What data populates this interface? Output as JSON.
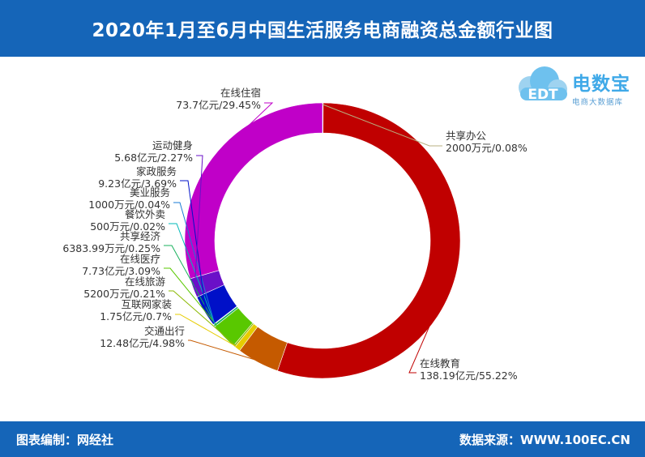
{
  "header": {
    "title": "2020年1月至6月中国生活服务电商融资总金额行业图"
  },
  "footer": {
    "left": "图表编制：网经社",
    "right": "数据来源：WWW.100EC.CN"
  },
  "logo": {
    "name": "电数宝",
    "subtitle": "电商大数据库",
    "mark_text": "EDT"
  },
  "chart_data": {
    "type": "pie",
    "donut": true,
    "start": "clockwise from top",
    "slices": [
      {
        "name": "共享办公",
        "label": "2000万元/0.08%",
        "percent": 0.08,
        "color": "#e8e4c0"
      },
      {
        "name": "在线教育",
        "label": "138.19亿元/55.22%",
        "percent": 55.22,
        "color": "#c00000"
      },
      {
        "name": "交通出行",
        "label": "12.48亿元/4.98%",
        "percent": 4.98,
        "color": "#c55a00"
      },
      {
        "name": "互联网家装",
        "label": "1.75亿元/0.7%",
        "percent": 0.7,
        "color": "#e6cc00"
      },
      {
        "name": "在线旅游",
        "label": "5200万元/0.21%",
        "percent": 0.21,
        "color": "#8ab800"
      },
      {
        "name": "在线医疗",
        "label": "7.73亿元/3.09%",
        "percent": 3.09,
        "color": "#59c800"
      },
      {
        "name": "共享经济",
        "label": "6383.99万元/0.25%",
        "percent": 0.25,
        "color": "#18b15c"
      },
      {
        "name": "餐饮外卖",
        "label": "500万元/0.02%",
        "percent": 0.02,
        "color": "#00b8b8"
      },
      {
        "name": "美业服务",
        "label": "1000万元/0.04%",
        "percent": 0.04,
        "color": "#1a7bd4"
      },
      {
        "name": "家政服务",
        "label": "9.23亿元/3.69%",
        "percent": 3.69,
        "color": "#0010c8"
      },
      {
        "name": "运动健身",
        "label": "5.68亿元/2.27%",
        "percent": 2.27,
        "color": "#6a10c8"
      },
      {
        "name": "在线住宿",
        "label": "73.7亿元/29.45%",
        "percent": 29.45,
        "color": "#c000c8"
      }
    ]
  }
}
